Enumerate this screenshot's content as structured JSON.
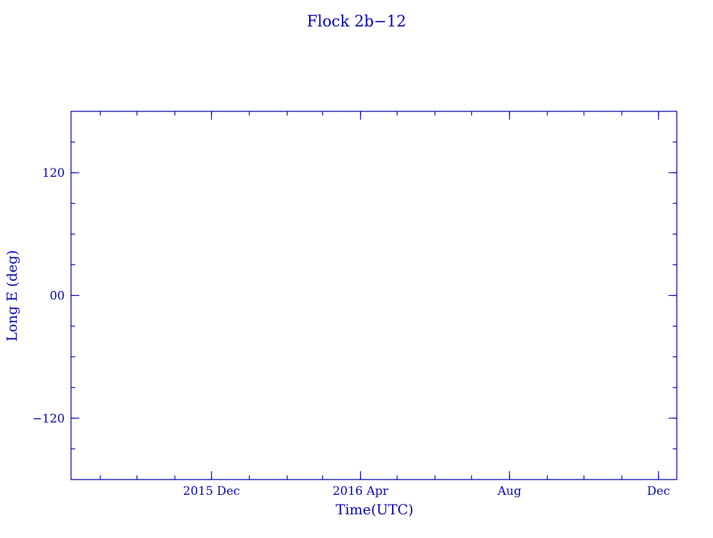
{
  "chart_data": {
    "type": "scatter",
    "title": "Flock 2b−12",
    "xlabel": "Time(UTC)",
    "ylabel": "Long E (deg)",
    "xlim": [
      "2015-08-08",
      "2016-12-16"
    ],
    "ylim": [
      -180,
      180
    ],
    "x_ticks": [
      {
        "date": "2015-12-01",
        "label": "2015 Dec"
      },
      {
        "date": "2016-04-01",
        "label": "2016 Apr"
      },
      {
        "date": "2016-08-01",
        "label": "Aug"
      },
      {
        "date": "2016-12-01",
        "label": "Dec"
      }
    ],
    "x_minor": "monthly",
    "y_ticks": [
      {
        "value": 120,
        "label": "120"
      },
      {
        "value": 0,
        "label": "00"
      },
      {
        "value": -120,
        "label": "−120"
      }
    ],
    "y_minor_step": 30,
    "series": [],
    "grid": false,
    "color": "#0000a8"
  }
}
